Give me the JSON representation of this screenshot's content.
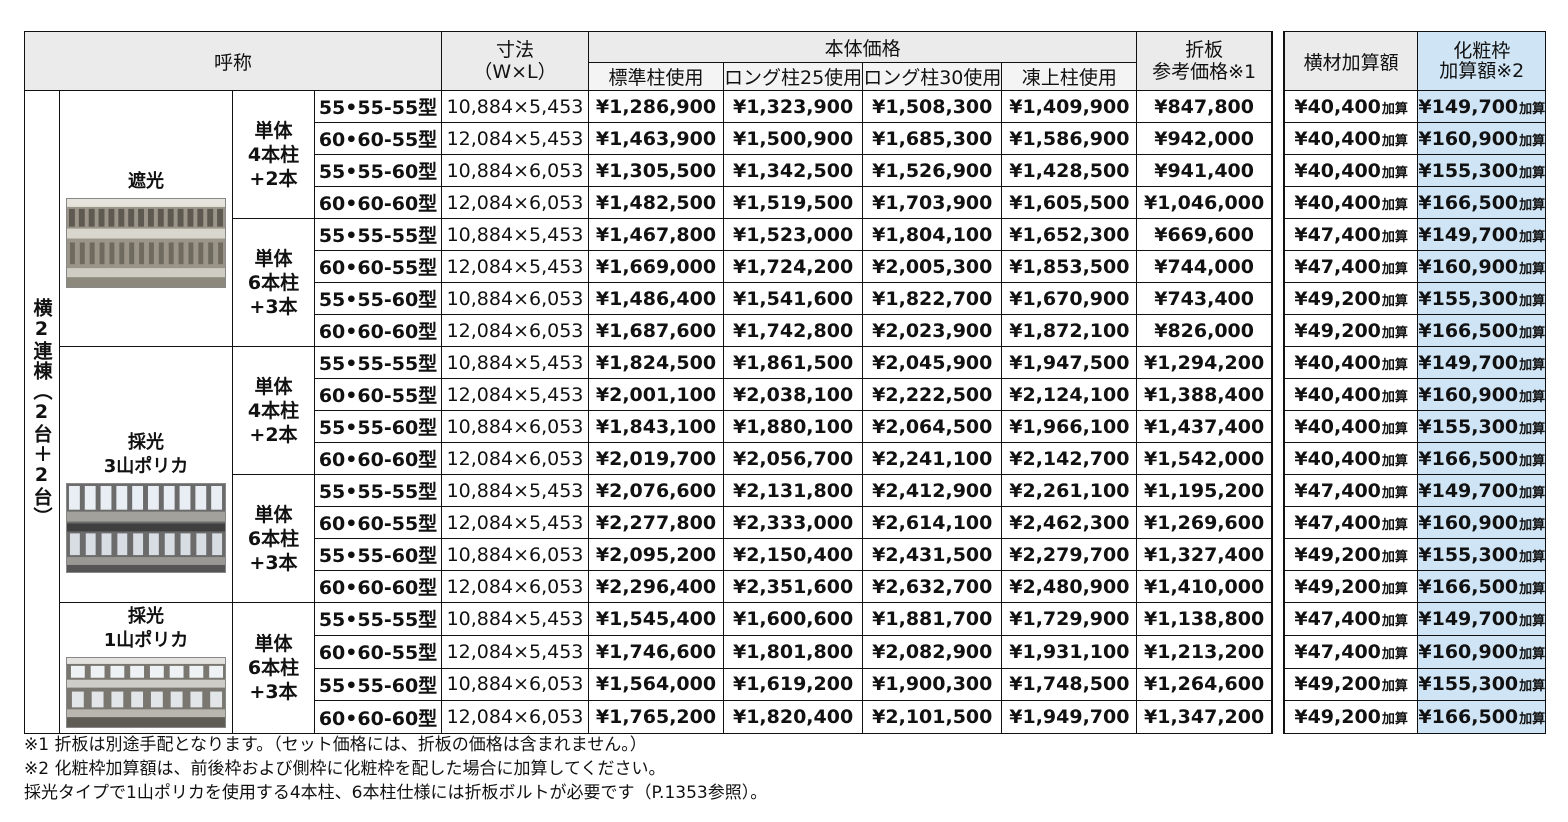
{
  "header": {
    "name": "呼称",
    "size_l1": "寸法",
    "size_l2": "（W×L）",
    "price_group": "本体価格",
    "col_standard": "標準柱使用",
    "col_long25": "ロング柱25使用",
    "col_long30": "ロング柱30使用",
    "col_frost": "凍上柱使用",
    "ref_l1": "折板",
    "ref_l2": "参考価格※1",
    "beam": "横材加算額",
    "cos_l1": "化粧枠",
    "cos_l2": "加算額※2"
  },
  "category": "横2連棟（2台＋2台）",
  "kasan": "加算",
  "types": {
    "shade": "遮光",
    "lighting": "採光",
    "poly3": "3山ポリカ",
    "poly1": "1山ポリカ"
  },
  "groups": {
    "g4": [
      "単体",
      "4本柱",
      "+2本"
    ],
    "g6": [
      "単体",
      "6本柱",
      "+3本"
    ]
  },
  "rows": [
    {
      "model": "55•55-55型",
      "dim": "10,884×5,453",
      "std": "¥1,286,900",
      "l25": "¥1,323,900",
      "l30": "¥1,508,300",
      "frost": "¥1,409,900",
      "ref": "¥847,800",
      "beam": "¥40,400",
      "cos": "¥149,700"
    },
    {
      "model": "60•60-55型",
      "dim": "12,084×5,453",
      "std": "¥1,463,900",
      "l25": "¥1,500,900",
      "l30": "¥1,685,300",
      "frost": "¥1,586,900",
      "ref": "¥942,000",
      "beam": "¥40,400",
      "cos": "¥160,900"
    },
    {
      "model": "55•55-60型",
      "dim": "10,884×6,053",
      "std": "¥1,305,500",
      "l25": "¥1,342,500",
      "l30": "¥1,526,900",
      "frost": "¥1,428,500",
      "ref": "¥941,400",
      "beam": "¥40,400",
      "cos": "¥155,300"
    },
    {
      "model": "60•60-60型",
      "dim": "12,084×6,053",
      "std": "¥1,482,500",
      "l25": "¥1,519,500",
      "l30": "¥1,703,900",
      "frost": "¥1,605,500",
      "ref": "¥1,046,000",
      "beam": "¥40,400",
      "cos": "¥166,500"
    },
    {
      "model": "55•55-55型",
      "dim": "10,884×5,453",
      "std": "¥1,467,800",
      "l25": "¥1,523,000",
      "l30": "¥1,804,100",
      "frost": "¥1,652,300",
      "ref": "¥669,600",
      "beam": "¥47,400",
      "cos": "¥149,700"
    },
    {
      "model": "60•60-55型",
      "dim": "12,084×5,453",
      "std": "¥1,669,000",
      "l25": "¥1,724,200",
      "l30": "¥2,005,300",
      "frost": "¥1,853,500",
      "ref": "¥744,000",
      "beam": "¥47,400",
      "cos": "¥160,900"
    },
    {
      "model": "55•55-60型",
      "dim": "10,884×6,053",
      "std": "¥1,486,400",
      "l25": "¥1,541,600",
      "l30": "¥1,822,700",
      "frost": "¥1,670,900",
      "ref": "¥743,400",
      "beam": "¥49,200",
      "cos": "¥155,300"
    },
    {
      "model": "60•60-60型",
      "dim": "12,084×6,053",
      "std": "¥1,687,600",
      "l25": "¥1,742,800",
      "l30": "¥2,023,900",
      "frost": "¥1,872,100",
      "ref": "¥826,000",
      "beam": "¥49,200",
      "cos": "¥166,500"
    },
    {
      "model": "55•55-55型",
      "dim": "10,884×5,453",
      "std": "¥1,824,500",
      "l25": "¥1,861,500",
      "l30": "¥2,045,900",
      "frost": "¥1,947,500",
      "ref": "¥1,294,200",
      "beam": "¥40,400",
      "cos": "¥149,700"
    },
    {
      "model": "60•60-55型",
      "dim": "12,084×5,453",
      "std": "¥2,001,100",
      "l25": "¥2,038,100",
      "l30": "¥2,222,500",
      "frost": "¥2,124,100",
      "ref": "¥1,388,400",
      "beam": "¥40,400",
      "cos": "¥160,900"
    },
    {
      "model": "55•55-60型",
      "dim": "10,884×6,053",
      "std": "¥1,843,100",
      "l25": "¥1,880,100",
      "l30": "¥2,064,500",
      "frost": "¥1,966,100",
      "ref": "¥1,437,400",
      "beam": "¥40,400",
      "cos": "¥155,300"
    },
    {
      "model": "60•60-60型",
      "dim": "12,084×6,053",
      "std": "¥2,019,700",
      "l25": "¥2,056,700",
      "l30": "¥2,241,100",
      "frost": "¥2,142,700",
      "ref": "¥1,542,000",
      "beam": "¥40,400",
      "cos": "¥166,500"
    },
    {
      "model": "55•55-55型",
      "dim": "10,884×5,453",
      "std": "¥2,076,600",
      "l25": "¥2,131,800",
      "l30": "¥2,412,900",
      "frost": "¥2,261,100",
      "ref": "¥1,195,200",
      "beam": "¥47,400",
      "cos": "¥149,700"
    },
    {
      "model": "60•60-55型",
      "dim": "12,084×5,453",
      "std": "¥2,277,800",
      "l25": "¥2,333,000",
      "l30": "¥2,614,100",
      "frost": "¥2,462,300",
      "ref": "¥1,269,600",
      "beam": "¥47,400",
      "cos": "¥160,900"
    },
    {
      "model": "55•55-60型",
      "dim": "10,884×6,053",
      "std": "¥2,095,200",
      "l25": "¥2,150,400",
      "l30": "¥2,431,500",
      "frost": "¥2,279,700",
      "ref": "¥1,327,400",
      "beam": "¥49,200",
      "cos": "¥155,300"
    },
    {
      "model": "60•60-60型",
      "dim": "12,084×6,053",
      "std": "¥2,296,400",
      "l25": "¥2,351,600",
      "l30": "¥2,632,700",
      "frost": "¥2,480,900",
      "ref": "¥1,410,000",
      "beam": "¥49,200",
      "cos": "¥166,500"
    },
    {
      "model": "55•55-55型",
      "dim": "10,884×5,453",
      "std": "¥1,545,400",
      "l25": "¥1,600,600",
      "l30": "¥1,881,700",
      "frost": "¥1,729,900",
      "ref": "¥1,138,800",
      "beam": "¥47,400",
      "cos": "¥149,700"
    },
    {
      "model": "60•60-55型",
      "dim": "12,084×5,453",
      "std": "¥1,746,600",
      "l25": "¥1,801,800",
      "l30": "¥2,082,900",
      "frost": "¥1,931,100",
      "ref": "¥1,213,200",
      "beam": "¥47,400",
      "cos": "¥160,900"
    },
    {
      "model": "55•55-60型",
      "dim": "10,884×6,053",
      "std": "¥1,564,000",
      "l25": "¥1,619,200",
      "l30": "¥1,900,300",
      "frost": "¥1,748,500",
      "ref": "¥1,264,600",
      "beam": "¥49,200",
      "cos": "¥155,300"
    },
    {
      "model": "60•60-60型",
      "dim": "12,084×6,053",
      "std": "¥1,765,200",
      "l25": "¥1,820,400",
      "l30": "¥2,101,500",
      "frost": "¥1,949,700",
      "ref": "¥1,347,200",
      "beam": "¥49,200",
      "cos": "¥166,500"
    }
  ],
  "notes": [
    "※1 折板は別途手配となります。（セット価格には、折板の価格は含まれません。）",
    "※2 化粧枠加算額は、前後枠および側枠に化粧枠を配した場合に加算してください。",
    "採光タイプで1山ポリカを使用する4本柱、6本柱仕様には折板ボルトが必要です（P.1353参照）。"
  ],
  "colors": {
    "header_gray": "#ebebeb",
    "accent_blue": "#cfe4f4"
  }
}
